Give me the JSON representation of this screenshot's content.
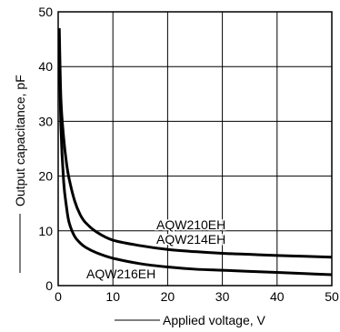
{
  "chart_data": {
    "type": "line",
    "title": "",
    "xlabel": "Applied voltage, V",
    "ylabel": "Output capacitance, pF",
    "xlim": [
      0,
      50
    ],
    "ylim": [
      0,
      50
    ],
    "xticks": [
      0,
      10,
      20,
      30,
      40,
      50
    ],
    "yticks": [
      0,
      10,
      20,
      30,
      40,
      50
    ],
    "xtick_labels": [
      "0",
      "10",
      "20",
      "30",
      "40",
      "50"
    ],
    "ytick_labels": [
      "0",
      "10",
      "20",
      "30",
      "40",
      "50"
    ],
    "grid": true,
    "series": [
      {
        "name": "AQW210EH\nAQW214EH",
        "label_lines": [
          "AQW210EH",
          "AQW214EH"
        ],
        "x": [
          0.2,
          0.5,
          1,
          1.5,
          2,
          3,
          4,
          5,
          7,
          10,
          15,
          20,
          25,
          30,
          35,
          40,
          45,
          50
        ],
        "y": [
          47,
          34,
          27,
          22.5,
          19.5,
          15.5,
          13,
          11.5,
          9.8,
          8.3,
          7.3,
          6.6,
          6.2,
          5.9,
          5.7,
          5.5,
          5.35,
          5.2
        ]
      },
      {
        "name": "AQW216EH",
        "label_lines": [
          "AQW216EH"
        ],
        "x": [
          0.2,
          0.5,
          1,
          1.5,
          2,
          3,
          4,
          5,
          7,
          10,
          15,
          20,
          25,
          30,
          35,
          40,
          45,
          50
        ],
        "y": [
          45,
          29,
          19,
          14.5,
          11.5,
          9,
          7.8,
          7,
          6,
          5,
          4,
          3.4,
          3,
          2.8,
          2.6,
          2.4,
          2.2,
          2
        ]
      }
    ]
  }
}
